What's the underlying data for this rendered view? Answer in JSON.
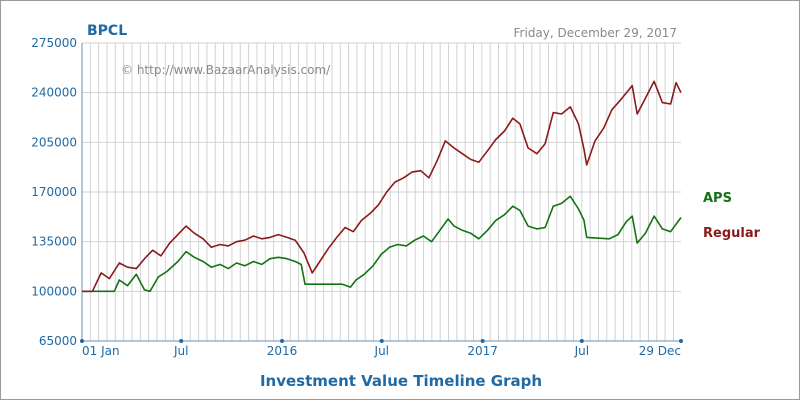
{
  "header": {
    "title": "BPCL",
    "date": "Friday, December 29, 2017",
    "copyright": "© http://www.BazaarAnalysis.com/",
    "graph_title": "Investment Value Timeline Graph"
  },
  "colors": {
    "aps": "#137313",
    "regular": "#8b1a1a",
    "axis_text": "#1f6aa5",
    "grid": "#d2d2d2"
  },
  "chart_data": {
    "type": "line",
    "title": "Investment Value Timeline Graph",
    "x_range": [
      "2015-01-01",
      "2017-12-29"
    ],
    "ylim": [
      65000,
      275000
    ],
    "y_ticks": [
      65000,
      100000,
      135000,
      170000,
      205000,
      240000,
      275000
    ],
    "x_ticks": [
      {
        "date": "2015-01-01",
        "label": "01 Jan"
      },
      {
        "date": "2015-07-01",
        "label": "Jul"
      },
      {
        "date": "2016-01-01",
        "label": "2016"
      },
      {
        "date": "2016-07-01",
        "label": "Jul"
      },
      {
        "date": "2017-01-01",
        "label": "2017"
      },
      {
        "date": "2017-07-01",
        "label": "Jul"
      },
      {
        "date": "2017-12-29",
        "label": "29 Dec"
      }
    ],
    "grid": true,
    "legend_position": "right",
    "series": [
      {
        "name": "APS",
        "points": [
          [
            "2015-01-01",
            100000
          ],
          [
            "2015-03-01",
            100000
          ],
          [
            "2015-03-10",
            108000
          ],
          [
            "2015-03-25",
            104000
          ],
          [
            "2015-04-10",
            112000
          ],
          [
            "2015-04-25",
            101000
          ],
          [
            "2015-05-05",
            100000
          ],
          [
            "2015-05-20",
            110000
          ],
          [
            "2015-06-05",
            114000
          ],
          [
            "2015-06-25",
            121000
          ],
          [
            "2015-07-10",
            128000
          ],
          [
            "2015-07-25",
            124000
          ],
          [
            "2015-08-10",
            121000
          ],
          [
            "2015-08-25",
            117000
          ],
          [
            "2015-09-10",
            119000
          ],
          [
            "2015-09-25",
            116000
          ],
          [
            "2015-10-10",
            120000
          ],
          [
            "2015-10-25",
            118000
          ],
          [
            "2015-11-10",
            121000
          ],
          [
            "2015-11-25",
            119000
          ],
          [
            "2015-12-10",
            123000
          ],
          [
            "2015-12-25",
            124000
          ],
          [
            "2016-01-10",
            123000
          ],
          [
            "2016-01-25",
            121000
          ],
          [
            "2016-02-05",
            119000
          ],
          [
            "2016-02-12",
            105000
          ],
          [
            "2016-03-15",
            105000
          ],
          [
            "2016-04-20",
            105000
          ],
          [
            "2016-05-05",
            103000
          ],
          [
            "2016-05-15",
            108000
          ],
          [
            "2016-05-30",
            112000
          ],
          [
            "2016-06-15",
            118000
          ],
          [
            "2016-06-30",
            126000
          ],
          [
            "2016-07-15",
            131000
          ],
          [
            "2016-07-30",
            133000
          ],
          [
            "2016-08-15",
            132000
          ],
          [
            "2016-08-30",
            136000
          ],
          [
            "2016-09-15",
            139000
          ],
          [
            "2016-09-30",
            135000
          ],
          [
            "2016-10-15",
            143000
          ],
          [
            "2016-10-30",
            151000
          ],
          [
            "2016-11-10",
            146000
          ],
          [
            "2016-11-25",
            143000
          ],
          [
            "2016-12-10",
            141000
          ],
          [
            "2016-12-25",
            137000
          ],
          [
            "2017-01-10",
            143000
          ],
          [
            "2017-01-25",
            150000
          ],
          [
            "2017-02-10",
            154000
          ],
          [
            "2017-02-25",
            160000
          ],
          [
            "2017-03-10",
            157000
          ],
          [
            "2017-03-25",
            146000
          ],
          [
            "2017-04-10",
            144000
          ],
          [
            "2017-04-25",
            145000
          ],
          [
            "2017-05-10",
            160000
          ],
          [
            "2017-05-25",
            162000
          ],
          [
            "2017-06-10",
            167000
          ],
          [
            "2017-06-25",
            158000
          ],
          [
            "2017-07-05",
            150000
          ],
          [
            "2017-07-10",
            138000
          ],
          [
            "2017-08-20",
            137000
          ],
          [
            "2017-09-05",
            140000
          ],
          [
            "2017-09-20",
            149000
          ],
          [
            "2017-10-01",
            153000
          ],
          [
            "2017-10-10",
            134000
          ],
          [
            "2017-10-25",
            141000
          ],
          [
            "2017-11-10",
            153000
          ],
          [
            "2017-11-25",
            144000
          ],
          [
            "2017-12-10",
            142000
          ],
          [
            "2017-12-29",
            152000
          ]
        ]
      },
      {
        "name": "Regular",
        "points": [
          [
            "2015-01-01",
            100000
          ],
          [
            "2015-01-20",
            100000
          ],
          [
            "2015-02-05",
            113000
          ],
          [
            "2015-02-20",
            109000
          ],
          [
            "2015-03-10",
            120000
          ],
          [
            "2015-03-25",
            117000
          ],
          [
            "2015-04-10",
            116000
          ],
          [
            "2015-04-25",
            123000
          ],
          [
            "2015-05-10",
            129000
          ],
          [
            "2015-05-25",
            125000
          ],
          [
            "2015-06-10",
            134000
          ],
          [
            "2015-06-25",
            140000
          ],
          [
            "2015-07-10",
            146000
          ],
          [
            "2015-07-25",
            141000
          ],
          [
            "2015-08-10",
            137000
          ],
          [
            "2015-08-25",
            131000
          ],
          [
            "2015-09-10",
            133000
          ],
          [
            "2015-09-25",
            132000
          ],
          [
            "2015-10-10",
            135000
          ],
          [
            "2015-10-25",
            136000
          ],
          [
            "2015-11-10",
            139000
          ],
          [
            "2015-11-25",
            137000
          ],
          [
            "2015-12-10",
            138000
          ],
          [
            "2015-12-25",
            140000
          ],
          [
            "2016-01-10",
            138000
          ],
          [
            "2016-01-25",
            136000
          ],
          [
            "2016-02-10",
            127000
          ],
          [
            "2016-02-25",
            113000
          ],
          [
            "2016-03-10",
            121000
          ],
          [
            "2016-03-25",
            130000
          ],
          [
            "2016-04-10",
            138000
          ],
          [
            "2016-04-25",
            145000
          ],
          [
            "2016-05-10",
            142000
          ],
          [
            "2016-05-25",
            150000
          ],
          [
            "2016-06-10",
            155000
          ],
          [
            "2016-06-25",
            161000
          ],
          [
            "2016-07-10",
            170000
          ],
          [
            "2016-07-25",
            177000
          ],
          [
            "2016-08-10",
            180000
          ],
          [
            "2016-08-25",
            184000
          ],
          [
            "2016-09-10",
            185000
          ],
          [
            "2016-09-25",
            180000
          ],
          [
            "2016-10-10",
            192000
          ],
          [
            "2016-10-25",
            206000
          ],
          [
            "2016-11-10",
            201000
          ],
          [
            "2016-11-25",
            197000
          ],
          [
            "2016-12-10",
            193000
          ],
          [
            "2016-12-25",
            191000
          ],
          [
            "2017-01-10",
            199000
          ],
          [
            "2017-01-25",
            207000
          ],
          [
            "2017-02-10",
            213000
          ],
          [
            "2017-02-25",
            222000
          ],
          [
            "2017-03-10",
            218000
          ],
          [
            "2017-03-25",
            201000
          ],
          [
            "2017-04-10",
            197000
          ],
          [
            "2017-04-25",
            204000
          ],
          [
            "2017-05-10",
            226000
          ],
          [
            "2017-05-25",
            225000
          ],
          [
            "2017-06-10",
            230000
          ],
          [
            "2017-06-25",
            218000
          ],
          [
            "2017-07-05",
            200000
          ],
          [
            "2017-07-10",
            189000
          ],
          [
            "2017-07-25",
            206000
          ],
          [
            "2017-08-10",
            215000
          ],
          [
            "2017-08-25",
            228000
          ],
          [
            "2017-09-10",
            235000
          ],
          [
            "2017-09-25",
            242000
          ],
          [
            "2017-10-01",
            245000
          ],
          [
            "2017-10-10",
            225000
          ],
          [
            "2017-10-25",
            236000
          ],
          [
            "2017-11-10",
            248000
          ],
          [
            "2017-11-25",
            233000
          ],
          [
            "2017-12-10",
            232000
          ],
          [
            "2017-12-20",
            247000
          ],
          [
            "2017-12-29",
            240000
          ]
        ]
      }
    ]
  }
}
